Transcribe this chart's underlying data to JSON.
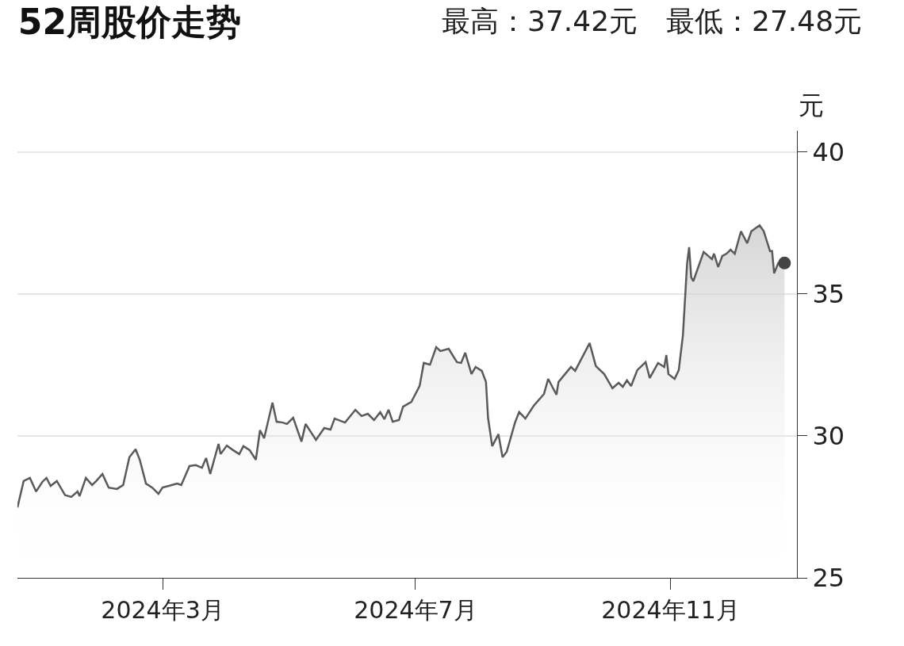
{
  "chart_data": {
    "type": "area",
    "title": "52周股价走势",
    "subtitle": "最高：37.42元　最低：27.48元",
    "ylabel": "元",
    "xlim": [
      "2023-12-22",
      "2025-01-01"
    ],
    "xticks": [
      {
        "value": "2024-03-01",
        "label": "2024年3月"
      },
      {
        "value": "2024-07-01",
        "label": "2024年7月"
      },
      {
        "value": "2024-11-01",
        "label": "2024年11月"
      }
    ],
    "ylim": [
      25,
      40.75
    ],
    "yticks": [
      25,
      30,
      35,
      40
    ],
    "grid": "y",
    "series": [
      {
        "color": "#5a5a5a",
        "x": [
          "2023-12-22",
          "2023-12-25",
          "2023-12-28",
          "2023-12-31",
          "2024-01-03",
          "2024-01-05",
          "2024-01-07",
          "2024-01-10",
          "2024-01-14",
          "2024-01-17",
          "2024-01-20",
          "2024-01-21",
          "2024-01-24",
          "2024-01-27",
          "2024-01-29",
          "2024-02-01",
          "2024-02-04",
          "2024-02-08",
          "2024-02-11",
          "2024-02-14",
          "2024-02-17",
          "2024-02-19",
          "2024-02-22",
          "2024-02-25",
          "2024-02-28",
          "2024-03-01",
          "2024-03-04",
          "2024-03-08",
          "2024-03-10",
          "2024-03-14",
          "2024-03-17",
          "2024-03-20",
          "2024-03-22",
          "2024-03-24",
          "2024-03-28",
          "2024-03-29",
          "2024-04-01",
          "2024-04-04",
          "2024-04-07",
          "2024-04-09",
          "2024-04-12",
          "2024-04-15",
          "2024-04-17",
          "2024-04-19",
          "2024-04-23",
          "2024-04-25",
          "2024-04-28",
          "2024-04-30",
          "2024-05-03",
          "2024-05-07",
          "2024-05-09",
          "2024-05-14",
          "2024-05-18",
          "2024-05-21",
          "2024-05-23",
          "2024-05-28",
          "2024-06-02",
          "2024-06-05",
          "2024-06-08",
          "2024-06-11",
          "2024-06-14",
          "2024-06-16",
          "2024-06-18",
          "2024-06-20",
          "2024-06-23",
          "2024-06-25",
          "2024-06-29",
          "2024-06-30",
          "2024-07-03",
          "2024-07-05",
          "2024-07-08",
          "2024-07-11",
          "2024-07-13",
          "2024-07-17",
          "2024-07-21",
          "2024-07-23",
          "2024-07-25",
          "2024-07-28",
          "2024-07-30",
          "2024-08-02",
          "2024-08-04",
          "2024-08-05",
          "2024-08-07",
          "2024-08-10",
          "2024-08-12",
          "2024-08-14",
          "2024-08-18",
          "2024-08-20",
          "2024-08-23",
          "2024-08-27",
          "2024-09-01",
          "2024-09-03",
          "2024-09-05",
          "2024-09-07",
          "2024-09-08",
          "2024-09-14",
          "2024-09-16",
          "2024-09-18",
          "2024-09-23",
          "2024-09-26",
          "2024-09-30",
          "2024-10-04",
          "2024-10-07",
          "2024-10-09",
          "2024-10-11",
          "2024-10-13",
          "2024-10-16",
          "2024-10-20",
          "2024-10-22",
          "2024-10-26",
          "2024-10-29",
          "2024-10-30",
          "2024-10-31",
          "2024-11-03",
          "2024-11-05",
          "2024-11-07",
          "2024-11-09",
          "2024-11-10",
          "2024-11-11",
          "2024-11-12",
          "2024-11-17",
          "2024-11-21",
          "2024-11-22",
          "2024-11-24",
          "2024-11-26",
          "2024-11-28",
          "2024-11-30",
          "2024-12-02",
          "2024-12-05",
          "2024-12-08",
          "2024-12-10",
          "2024-12-14",
          "2024-12-16",
          "2024-12-19",
          "2024-12-20",
          "2024-12-21",
          "2024-12-23",
          "2024-12-26"
        ],
        "values": [
          27.48,
          28.41,
          28.52,
          28.04,
          28.38,
          28.52,
          28.24,
          28.41,
          27.91,
          27.85,
          28.04,
          27.88,
          28.52,
          28.27,
          28.41,
          28.66,
          28.18,
          28.13,
          28.27,
          29.25,
          29.53,
          29.16,
          28.32,
          28.18,
          27.96,
          28.18,
          28.24,
          28.32,
          28.27,
          28.94,
          28.97,
          28.88,
          29.22,
          28.66,
          29.72,
          29.36,
          29.66,
          29.5,
          29.36,
          29.64,
          29.5,
          29.16,
          30.2,
          29.92,
          31.17,
          30.5,
          30.47,
          30.42,
          30.64,
          29.8,
          30.42,
          29.86,
          30.28,
          30.22,
          30.61,
          30.47,
          30.92,
          30.7,
          30.78,
          30.56,
          30.84,
          30.59,
          30.92,
          30.5,
          30.56,
          31.03,
          31.2,
          31.34,
          31.76,
          32.57,
          32.51,
          33.13,
          32.99,
          33.07,
          32.6,
          32.57,
          32.93,
          32.18,
          32.43,
          32.29,
          31.9,
          30.64,
          29.64,
          30.06,
          29.25,
          29.44,
          30.47,
          30.84,
          30.61,
          31.06,
          31.48,
          32.01,
          31.73,
          31.45,
          31.9,
          32.43,
          32.29,
          32.57,
          33.27,
          32.46,
          32.18,
          31.68,
          31.87,
          31.73,
          31.96,
          31.76,
          32.32,
          32.6,
          32.04,
          32.57,
          32.43,
          32.85,
          32.18,
          32.01,
          32.32,
          33.55,
          36.06,
          36.65,
          35.59,
          35.45,
          36.48,
          36.23,
          36.42,
          35.95,
          36.34,
          36.42,
          36.56,
          36.42,
          37.21,
          36.79,
          37.21,
          37.42,
          37.21,
          36.51,
          36.51,
          35.73,
          36.09,
          36.09
        ]
      },
      {
        "type": "scatter",
        "color": "#444444",
        "marker": "circle",
        "x": [
          "2024-12-26"
        ],
        "values": [
          36.09
        ]
      }
    ]
  }
}
